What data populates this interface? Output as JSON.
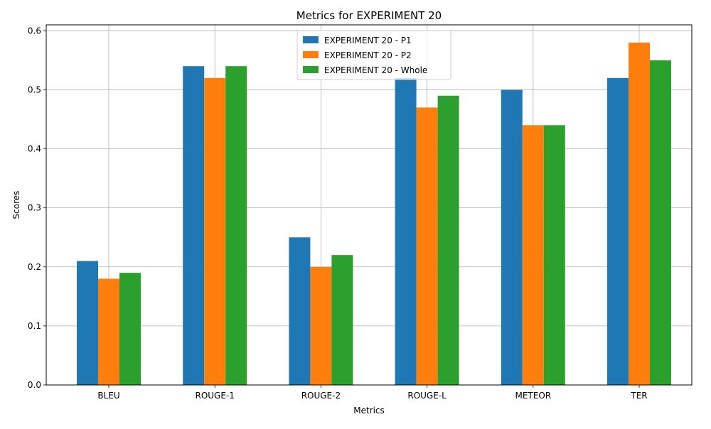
{
  "chart_data": {
    "type": "bar",
    "title": "Metrics for EXPERIMENT 20",
    "xlabel": "Metrics",
    "ylabel": "Scores",
    "categories": [
      "BLEU",
      "ROUGE-1",
      "ROUGE-2",
      "ROUGE-L",
      "METEOR",
      "TER"
    ],
    "series": [
      {
        "name": "EXPERIMENT 20 - P1",
        "color": "#1f77b4",
        "values": [
          0.21,
          0.54,
          0.25,
          0.52,
          0.5,
          0.52
        ]
      },
      {
        "name": "EXPERIMENT 20 - P2",
        "color": "#ff7f0e",
        "values": [
          0.18,
          0.52,
          0.2,
          0.47,
          0.44,
          0.58
        ]
      },
      {
        "name": "EXPERIMENT 20 - Whole",
        "color": "#2ca02c",
        "values": [
          0.19,
          0.54,
          0.22,
          0.49,
          0.44,
          0.55
        ]
      }
    ],
    "ylim": [
      0,
      0.61
    ],
    "yticks": [
      "0.0",
      "0.1",
      "0.2",
      "0.3",
      "0.4",
      "0.5",
      "0.6"
    ],
    "grid": true,
    "legend_position": "top-center"
  }
}
